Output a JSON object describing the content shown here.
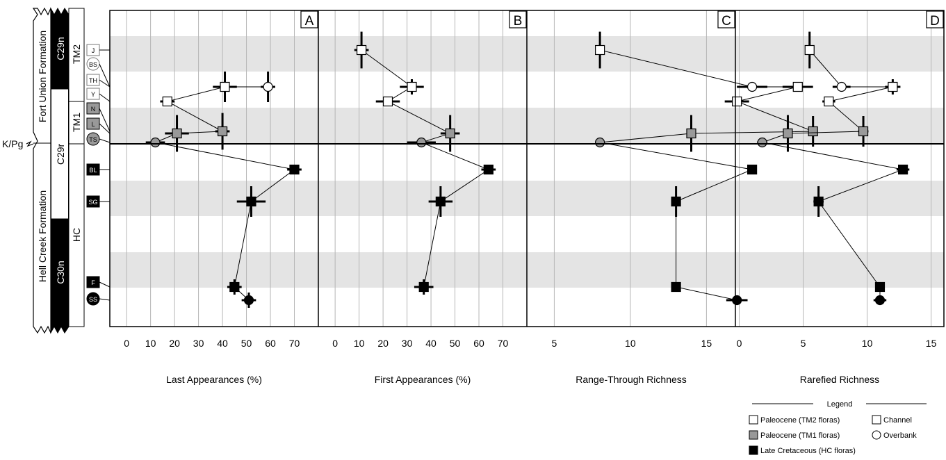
{
  "stratigraphy": {
    "kpg_label": "K/Pg",
    "formations": [
      "Fort Union Formation",
      "Hell Creek Formation"
    ],
    "chrons": [
      "C29n",
      "C29r",
      "C30n"
    ],
    "zones": [
      "TM2",
      "TM1",
      "HC"
    ]
  },
  "floras": [
    {
      "code": "J",
      "group": "TM2",
      "shape": "square"
    },
    {
      "code": "BS",
      "group": "TM2",
      "shape": "circle"
    },
    {
      "code": "TH",
      "group": "TM2",
      "shape": "square"
    },
    {
      "code": "Y",
      "group": "TM2",
      "shape": "square"
    },
    {
      "code": "N",
      "group": "TM1",
      "shape": "square"
    },
    {
      "code": "L",
      "group": "TM1",
      "shape": "square"
    },
    {
      "code": "TS",
      "group": "TM1",
      "shape": "circle"
    },
    {
      "code": "BL",
      "group": "HC",
      "shape": "square"
    },
    {
      "code": "SG",
      "group": "HC",
      "shape": "square"
    },
    {
      "code": "F",
      "group": "HC",
      "shape": "square"
    },
    {
      "code": "SS",
      "group": "HC",
      "shape": "circle"
    }
  ],
  "colors": {
    "TM2": "#ffffff",
    "TM1": "#999999",
    "HC": "#000000",
    "band": "#e4e4e4",
    "grid": "#b5b5b5"
  },
  "chart_data": [
    {
      "type": "scatter",
      "panel": "A",
      "xlabel": "Last Appearances (%)",
      "xlim": [
        -7,
        80
      ],
      "xticks": [
        0,
        10,
        20,
        30,
        40,
        50,
        60,
        70
      ],
      "grid": true,
      "points": [
        {
          "label": "Y",
          "x": 17,
          "xerr": 3,
          "yerr": 0
        },
        {
          "label": "TH",
          "x": 41,
          "xerr": 5,
          "yerr": 1
        },
        {
          "label": "BS",
          "x": 59,
          "xerr": 3,
          "yerr": 1
        },
        {
          "label": "N",
          "x": 40,
          "xerr": 3,
          "yerr": 1.2
        },
        {
          "label": "L",
          "x": 21,
          "xerr": 5,
          "yerr": 1.2
        },
        {
          "label": "TS",
          "x": 12,
          "xerr": 4,
          "yerr": 0
        },
        {
          "label": "BL",
          "x": 70,
          "xerr": 3,
          "yerr": 0
        },
        {
          "label": "SG",
          "x": 52,
          "xerr": 6,
          "yerr": 1
        },
        {
          "label": "F",
          "x": 45,
          "xerr": 3,
          "yerr": 0.5
        },
        {
          "label": "SS",
          "x": 51,
          "xerr": 3,
          "yerr": 0.5
        }
      ],
      "line_order": [
        "TH",
        "Y"
      ],
      "line_order_2": [
        "BS",
        "TH"
      ],
      "line_order_3": [
        "Y",
        "N",
        "L",
        "TS",
        "BL",
        "SG",
        "F"
      ],
      "line_order_4": [
        "F",
        "SS"
      ]
    },
    {
      "type": "scatter",
      "panel": "B",
      "xlabel": "First Appearances (%)",
      "xlim": [
        -7,
        80
      ],
      "xticks": [
        0,
        10,
        20,
        30,
        40,
        50,
        60,
        70
      ],
      "grid": true,
      "points": [
        {
          "label": "J",
          "x": 11,
          "xerr": 3,
          "yerr": 1.2
        },
        {
          "label": "TH",
          "x": 32,
          "xerr": 5,
          "yerr": 0.5
        },
        {
          "label": "Y",
          "x": 22,
          "xerr": 5,
          "yerr": 0
        },
        {
          "label": "L",
          "x": 48,
          "xerr": 4,
          "yerr": 1.2
        },
        {
          "label": "TS",
          "x": 36,
          "xerr": 6,
          "yerr": 0
        },
        {
          "label": "BL",
          "x": 64,
          "xerr": 3,
          "yerr": 0
        },
        {
          "label": "SG",
          "x": 44,
          "xerr": 5,
          "yerr": 1
        },
        {
          "label": "F",
          "x": 37,
          "xerr": 4,
          "yerr": 0.5
        }
      ],
      "line_order": [
        "J",
        "TH",
        "Y",
        "L",
        "TS",
        "BL",
        "SG",
        "F"
      ]
    },
    {
      "type": "scatter",
      "panel": "C",
      "xlabel": "Range-Through Richness",
      "xlim": [
        3.2,
        16.9
      ],
      "xticks": [
        5,
        10,
        15,
        20
      ],
      "grid": true,
      "points": [
        {
          "label": "J",
          "x": 8,
          "xerr": 0,
          "yerr": 1.2
        },
        {
          "label": "BS",
          "x": 18,
          "xerr": 1,
          "yerr": 0
        },
        {
          "label": "TH",
          "x": 21,
          "xerr": 1,
          "yerr": 0
        },
        {
          "label": "Y",
          "x": 17,
          "xerr": 0.8,
          "yerr": 0
        },
        {
          "label": "N",
          "x": 22,
          "xerr": 0,
          "yerr": 1
        },
        {
          "label": "L",
          "x": 14,
          "xerr": 0,
          "yerr": 1.2
        },
        {
          "label": "TS",
          "x": 8,
          "xerr": 0,
          "yerr": 0
        },
        {
          "label": "BL",
          "x": 18,
          "xerr": 0,
          "yerr": 0
        },
        {
          "label": "SG",
          "x": 13,
          "xerr": 0,
          "yerr": 1
        },
        {
          "label": "F",
          "x": 13,
          "xerr": 0,
          "yerr": 0
        },
        {
          "label": "SS",
          "x": 17,
          "xerr": 0.7,
          "yerr": 0
        }
      ],
      "line_order": [
        "J",
        "BS",
        "TH",
        "Y",
        "N",
        "L",
        "TS",
        "BL",
        "SG",
        "F",
        "SS"
      ]
    },
    {
      "type": "scatter",
      "panel": "D",
      "xlabel": "Rarefied Richness",
      "xlim": [
        -0.3,
        16
      ],
      "xticks": [
        0,
        5,
        10,
        15
      ],
      "grid": true,
      "points": [
        {
          "label": "J",
          "x": 5.5,
          "xerr": 0,
          "yerr": 1.2
        },
        {
          "label": "BS",
          "x": 8,
          "xerr": 0.7,
          "yerr": 0
        },
        {
          "label": "TH",
          "x": 12,
          "xerr": 0.6,
          "yerr": 0.5
        },
        {
          "label": "Y",
          "x": 7,
          "xerr": 0.5,
          "yerr": 0
        },
        {
          "label": "N",
          "x": 9.7,
          "xerr": 0.4,
          "yerr": 1
        },
        {
          "label": "L",
          "x": 3.8,
          "xerr": 0.3,
          "yerr": 1.2
        },
        {
          "label": "TS",
          "x": 1.8,
          "xerr": 0.4,
          "yerr": 0
        },
        {
          "label": "BL",
          "x": 12.8,
          "xerr": 0.5,
          "yerr": 0
        },
        {
          "label": "SG",
          "x": 6.2,
          "xerr": 0.4,
          "yerr": 1
        },
        {
          "label": "F",
          "x": 11,
          "xerr": 0.3,
          "yerr": 0
        },
        {
          "label": "SS",
          "x": 11,
          "xerr": 0.5,
          "yerr": 0
        }
      ],
      "line_order": [
        "J",
        "BS",
        "TH",
        "Y",
        "N",
        "L",
        "TS",
        "BL",
        "SG",
        "F",
        "SS"
      ]
    }
  ],
  "legend": {
    "title": "Legend",
    "items": [
      {
        "label": "Paleocene (TM2 floras)",
        "symbol": "square",
        "color": "#ffffff"
      },
      {
        "label": "Paleocene (TM1 floras)",
        "symbol": "square",
        "color": "#999999"
      },
      {
        "label": "Late Cretaceous (HC floras)",
        "symbol": "square",
        "color": "#000000"
      },
      {
        "label": "Channel",
        "symbol": "square",
        "color": "#ffffff"
      },
      {
        "label": "Overbank",
        "symbol": "circle",
        "color": "#ffffff"
      }
    ]
  }
}
